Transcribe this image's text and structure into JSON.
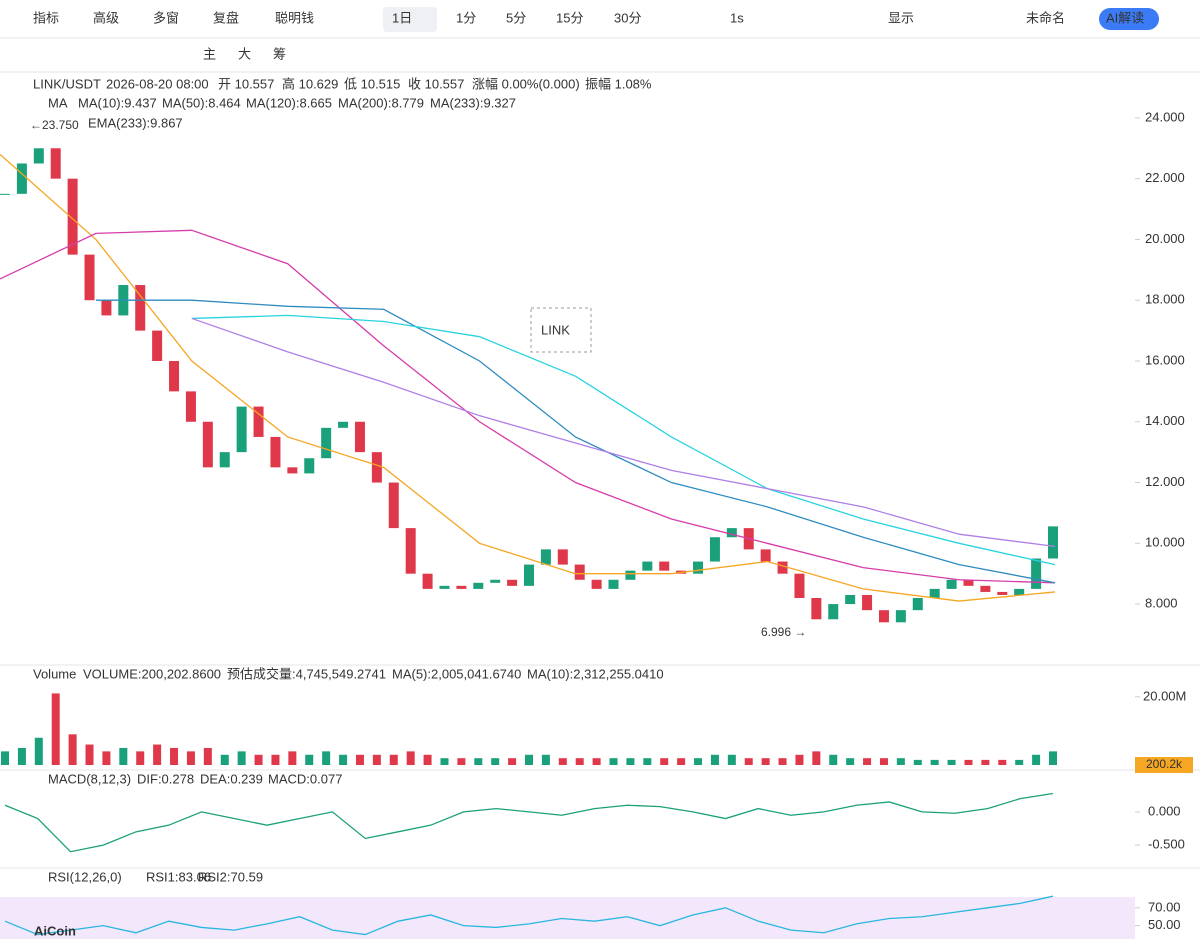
{
  "toolbar": {
    "items": [
      "指标",
      "高级",
      "多窗",
      "复盘",
      "聪明钱",
      "1日",
      "1分",
      "5分",
      "15分",
      "30分",
      "1s",
      "显示",
      "未命名",
      "AI解读"
    ]
  },
  "drawbar": {
    "items": [
      "主",
      "大",
      "筹"
    ]
  },
  "header": {
    "symbol": "LINK/USDT",
    "time": "2026-08-20 08:00",
    "open": "开 10.557",
    "high": "高 10.629",
    "low": "低 10.515",
    "close": "收 10.557",
    "change": "涨幅 0.00%(0.000)",
    "amplitude": "振幅 1.08%"
  },
  "ma_legend": {
    "label": "MA",
    "items": [
      "MA(10):9.437",
      "MA(50):8.464",
      "MA(120):8.665",
      "MA(200):8.779",
      "MA(233):9.327"
    ],
    "ema": "EMA(233):9.867"
  },
  "annotations": {
    "high": "←23.750",
    "low": "6.996 →",
    "text_box": "LINK"
  },
  "main": {
    "ylim": [
      6.16,
      25.51
    ],
    "yticks": [
      {
        "value": 8,
        "label": "8.000"
      },
      {
        "value": 10,
        "label": "10.000"
      },
      {
        "value": 12,
        "label": "12.000"
      },
      {
        "value": 14,
        "label": "14.000"
      },
      {
        "value": 16,
        "label": "16.000"
      },
      {
        "value": 18,
        "label": "18.000"
      },
      {
        "value": 20,
        "label": "20.000"
      },
      {
        "value": 22,
        "label": "22.000"
      },
      {
        "value": 24,
        "label": "24.000"
      }
    ],
    "close": [
      21.5,
      22.5,
      23,
      22,
      19.5,
      18,
      17.5,
      18.5,
      17,
      16,
      15,
      14,
      12.5,
      13,
      14.5,
      13.5,
      12.5,
      12.3,
      12.8,
      13.8,
      14,
      13,
      12,
      10.5,
      9,
      8.5,
      8.6,
      8.5,
      8.7,
      8.8,
      8.6,
      9.3,
      9.8,
      9.3,
      8.8,
      8.5,
      8.8,
      9.1,
      9.4,
      9.1,
      9,
      9.4,
      10.2,
      10.5,
      9.8,
      9.4,
      9,
      8.2,
      7.5,
      8,
      8.3,
      7.8,
      7.4,
      7.8,
      8.2,
      8.5,
      8.8,
      8.6,
      8.4,
      8.3,
      8.5,
      9.5,
      10.557
    ],
    "series": [
      {
        "name": "MA(50)",
        "color": "#f5a623",
        "values": [
          22.8,
          20,
          16,
          13.5,
          12.5,
          10,
          9,
          9,
          9.4,
          8.5,
          8.1,
          8.4
        ]
      },
      {
        "name": "MA(120)",
        "color": "#d63caa",
        "values": [
          18.7,
          20.2,
          20.3,
          19.2,
          16.5,
          14,
          12,
          10.8,
          10,
          9.2,
          8.8,
          8.7
        ]
      },
      {
        "name": "MA(200)",
        "color": "#2e8bc0",
        "values": [
          null,
          18,
          18,
          17.8,
          17.7,
          16,
          13.5,
          12,
          11.2,
          10.2,
          9.3,
          8.7
        ]
      },
      {
        "name": "MA(233)",
        "color": "#29d3e0",
        "values": [
          null,
          null,
          17.4,
          17.5,
          17.3,
          16.8,
          15.5,
          13.5,
          11.8,
          10.8,
          10,
          9.3
        ]
      },
      {
        "name": "EMA(233)",
        "color": "#b07ee8",
        "values": [
          null,
          null,
          17.4,
          16.3,
          15.3,
          14.2,
          13.3,
          12.4,
          11.8,
          11.2,
          10.3,
          9.9
        ]
      }
    ]
  },
  "volume": {
    "label": "Volume",
    "value": "VOLUME:200,202.8600",
    "estimate": "预估成交量:4,745,549.2741",
    "ma5": "MA(5):2,005,041.6740",
    "ma10": "MA(10):2,312,255.0410",
    "ylim": [
      0,
      22
    ],
    "yticks": [
      {
        "value": 20,
        "label": "20.00M"
      }
    ],
    "current": "200.2k",
    "values": [
      4,
      5,
      8,
      21,
      9,
      6,
      4,
      5,
      4,
      6,
      5,
      4,
      5,
      3,
      4,
      3,
      3,
      4,
      3,
      4,
      3,
      3,
      3,
      3,
      4,
      3,
      2,
      2,
      2,
      2,
      2,
      3,
      3,
      2,
      2,
      2,
      2,
      2,
      2,
      2,
      2,
      2,
      3,
      3,
      2,
      2,
      2,
      3,
      4,
      3,
      2,
      2,
      2,
      2,
      1.5,
      1.5,
      1.5,
      1.5,
      1.5,
      1.5,
      1.5,
      3,
      4
    ]
  },
  "macd": {
    "label": "MACD(8,12,3)",
    "dif": "DIF:0.278",
    "dea": "DEA:0.239",
    "macd": "MACD:0.077",
    "ylim": [
      -0.8,
      0.3
    ],
    "yticks": [
      {
        "value": 0,
        "label": "0.000"
      },
      {
        "value": -0.5,
        "label": "-0.500"
      }
    ],
    "values": [
      0.1,
      -0.1,
      -0.6,
      -0.5,
      -0.3,
      -0.2,
      0,
      -0.1,
      -0.2,
      -0.1,
      0,
      -0.4,
      -0.3,
      -0.2,
      0,
      0.05,
      0,
      -0.05,
      0.05,
      0.1,
      0.08,
      0,
      -0.1,
      0.05,
      -0.05,
      0,
      0.1,
      0.15,
      0,
      -0.02,
      0.05,
      0.2,
      0.278
    ]
  },
  "rsi": {
    "label": "RSI(12,26,0)",
    "rsi1": "RSI1:83.06",
    "rsi2": "RSI2:70.59",
    "ylim": [
      35,
      90
    ],
    "yticks": [
      {
        "value": 70,
        "label": "70.00"
      },
      {
        "value": 50,
        "label": "50.00"
      }
    ],
    "values": [
      55,
      40,
      45,
      50,
      42,
      55,
      48,
      45,
      52,
      60,
      45,
      40,
      55,
      62,
      50,
      48,
      52,
      58,
      55,
      60,
      50,
      62,
      70,
      55,
      45,
      42,
      52,
      58,
      60,
      65,
      70,
      75,
      83.06
    ]
  },
  "logo": "AiCoin"
}
